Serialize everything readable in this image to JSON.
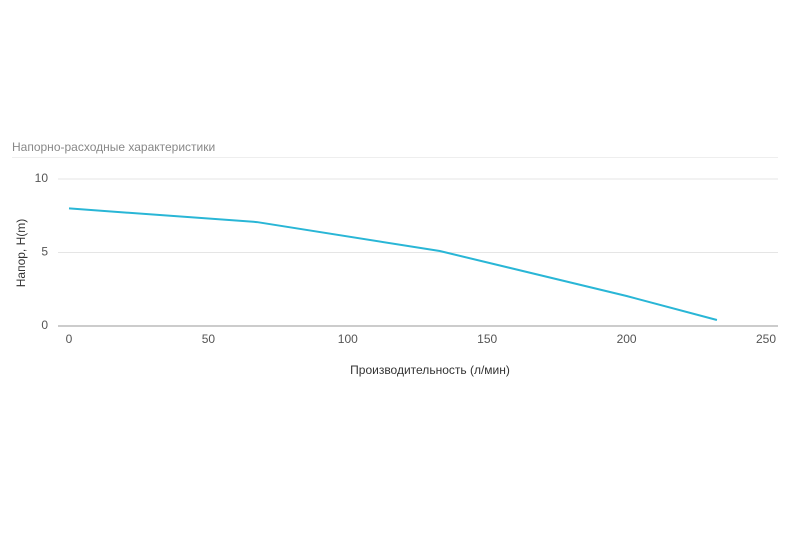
{
  "chart_data": {
    "type": "line",
    "title": "Напорно-расходные характеристики",
    "x_label": "Производительность (л/мин)",
    "y_label": "Напор, H(m)",
    "x": [
      0,
      67.4,
      133,
      200,
      232.4
    ],
    "values": [
      8,
      7.07,
      5.1,
      2.04,
      0.41
    ],
    "color": "#29b6d6",
    "xlim": [
      0,
      250
    ],
    "xticks": [
      0,
      50,
      100,
      150,
      200,
      250
    ],
    "ylim": [
      0,
      10
    ],
    "yticks": [
      0,
      5,
      10
    ],
    "grid": true
  }
}
